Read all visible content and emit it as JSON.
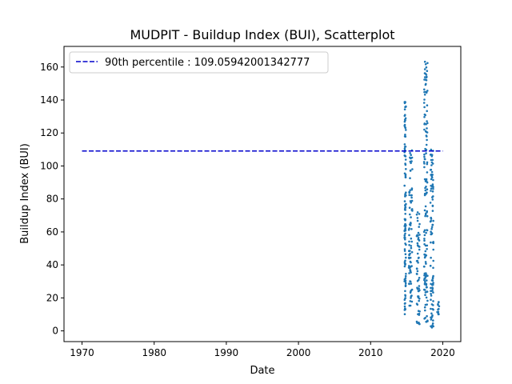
{
  "chart_data": {
    "type": "scatter",
    "title": "MUDPIT - Buildup Index (BUI), Scatterplot",
    "xlabel": "Date",
    "ylabel": "Buildup Index (BUI)",
    "xlim": [
      1967.5,
      2022.5
    ],
    "ylim": [
      -6.5,
      172.5
    ],
    "xticks": [
      1970,
      1980,
      1990,
      2000,
      2010,
      2020
    ],
    "yticks": [
      0,
      20,
      40,
      60,
      80,
      100,
      120,
      140,
      160
    ],
    "grid": false,
    "legend_position": "upper-left",
    "reference_line": {
      "label": "90th percentile : 109.05942001342777",
      "value": 109.05942001342777,
      "x_range": [
        1970,
        2020
      ],
      "color": "#0000cc",
      "style": "dashed"
    },
    "series": [
      {
        "color": "#1f77b4",
        "clusters": [
          {
            "x": [
              2014.7,
              2014.9
            ],
            "y": [
              10,
              140
            ]
          },
          {
            "x": [
              2015.3,
              2015.8
            ],
            "y": [
              15,
              110
            ]
          },
          {
            "x": [
              2016.4,
              2016.8
            ],
            "y": [
              4,
              72
            ]
          },
          {
            "x": [
              2017.4,
              2017.9
            ],
            "y": [
              5,
              165
            ]
          },
          {
            "x": [
              2018.3,
              2018.7
            ],
            "y": [
              1,
              114
            ]
          },
          {
            "x": [
              2019.2,
              2019.5
            ],
            "y": [
              10,
              18
            ]
          }
        ]
      }
    ]
  }
}
